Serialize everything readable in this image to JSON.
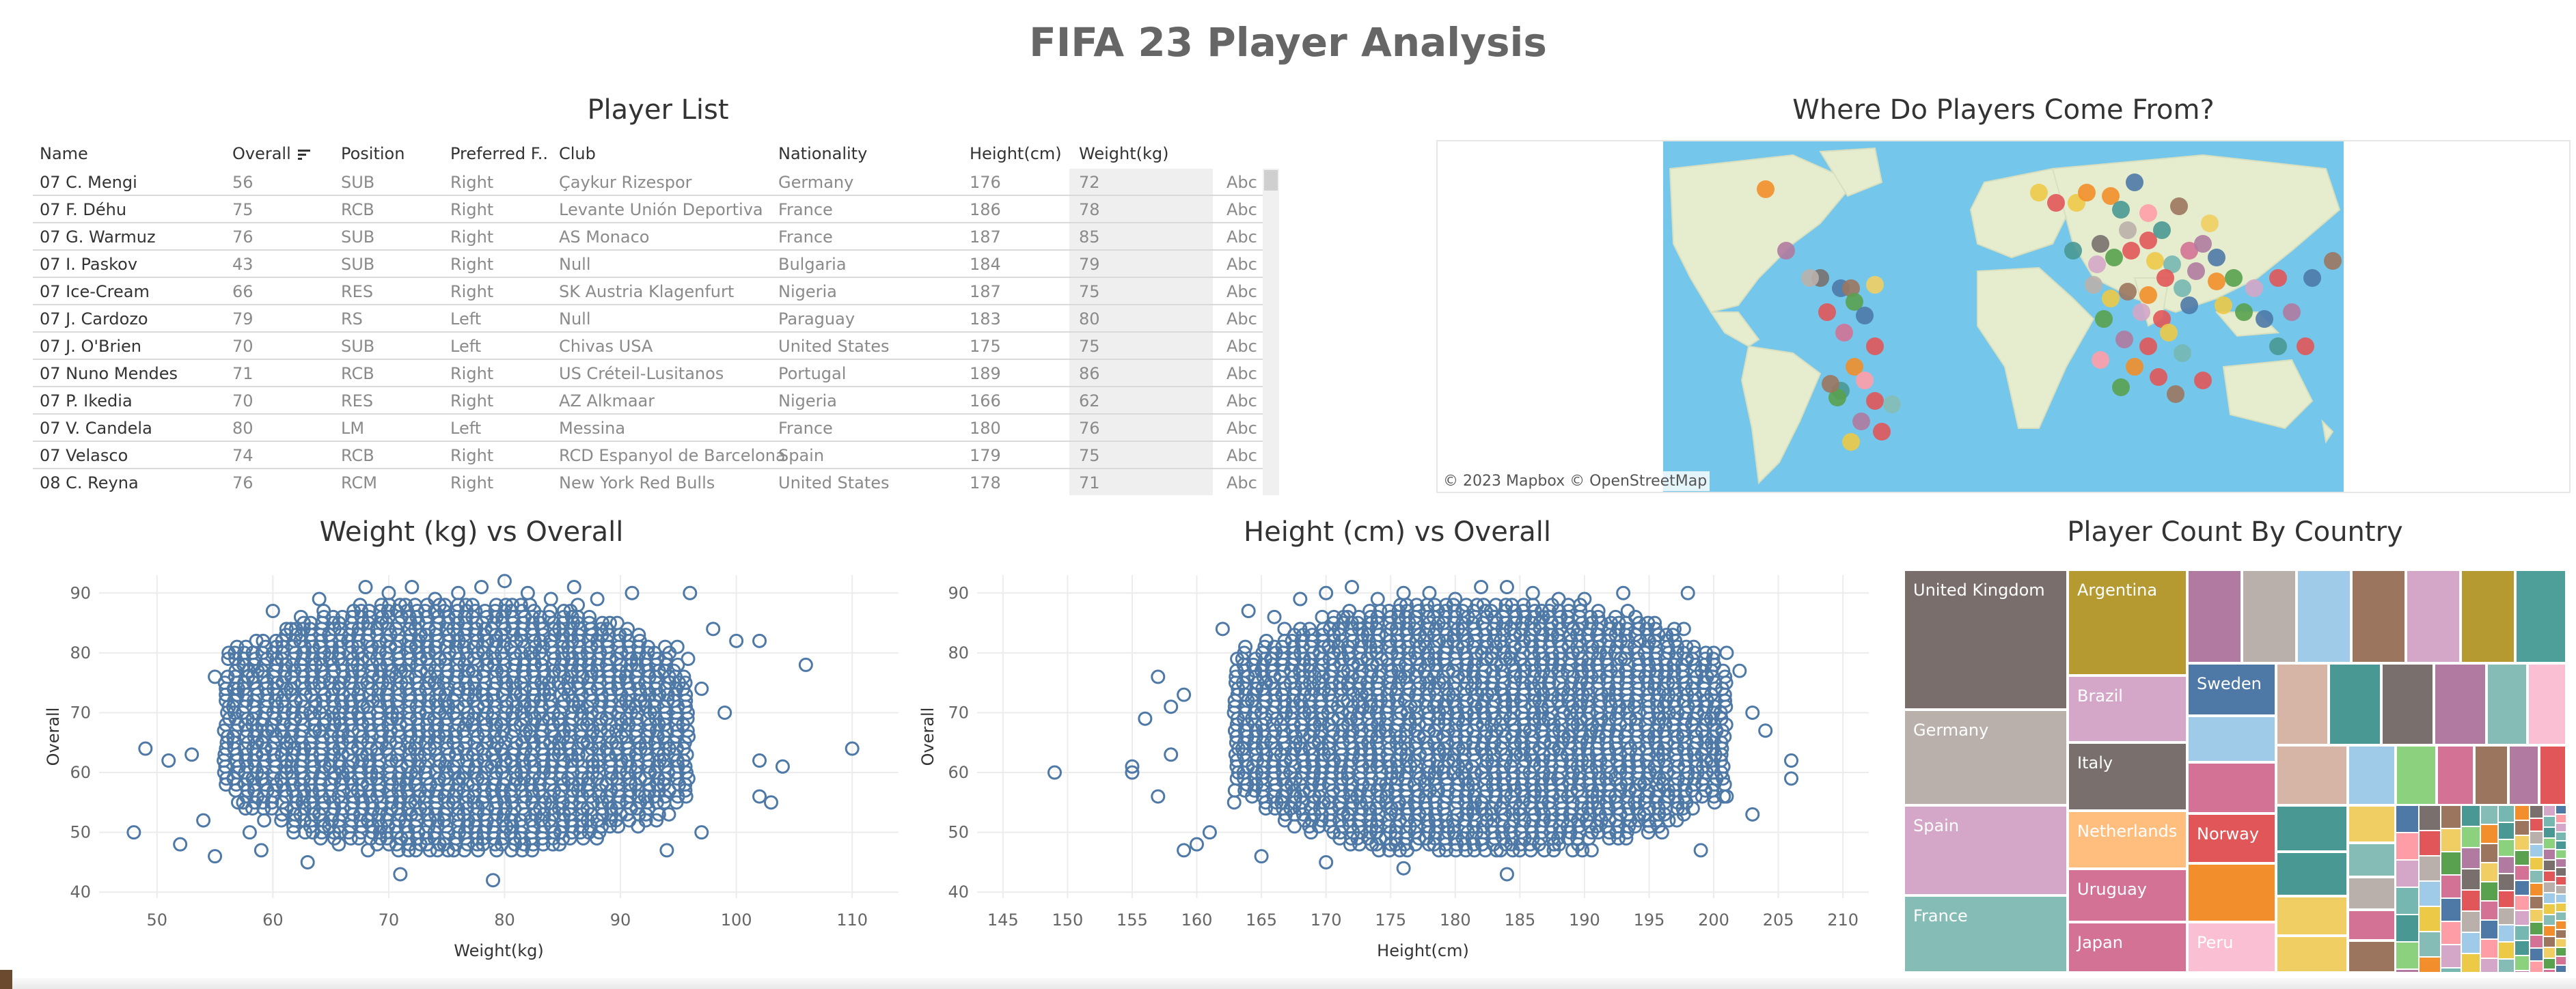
{
  "dashboard_title": "FIFA 23 Player Analysis",
  "player_list": {
    "title": "Player List",
    "columns": [
      "Name",
      "Overall",
      "Position",
      "Preferred F..",
      "Club",
      "Nationality",
      "Height(cm)",
      "Weight(kg)"
    ],
    "rows": [
      [
        "07 C. Mengi",
        "56",
        "SUB",
        "Right",
        "Çaykur Rizespor",
        "Germany",
        "176",
        "72",
        "Abc"
      ],
      [
        "07 F. Déhu",
        "75",
        "RCB",
        "Right",
        "Levante Unión Deportiva",
        "France",
        "186",
        "78",
        "Abc"
      ],
      [
        "07 G. Warmuz",
        "76",
        "SUB",
        "Right",
        "AS Monaco",
        "France",
        "187",
        "85",
        "Abc"
      ],
      [
        "07 I. Paskov",
        "43",
        "SUB",
        "Right",
        "Null",
        "Bulgaria",
        "184",
        "79",
        "Abc"
      ],
      [
        "07 Ice-Cream",
        "66",
        "RES",
        "Right",
        "SK Austria Klagenfurt",
        "Nigeria",
        "187",
        "75",
        "Abc"
      ],
      [
        "07 J. Cardozo",
        "79",
        "RS",
        "Left",
        "Null",
        "Paraguay",
        "183",
        "80",
        "Abc"
      ],
      [
        "07 J. O'Brien",
        "70",
        "SUB",
        "Left",
        "Chivas USA",
        "United States",
        "175",
        "75",
        "Abc"
      ],
      [
        "07 Nuno Mendes",
        "71",
        "RCB",
        "Right",
        "US Créteil-Lusitanos",
        "Portugal",
        "189",
        "86",
        "Abc"
      ],
      [
        "07 P. Ikedia",
        "70",
        "RES",
        "Right",
        "AZ Alkmaar",
        "Nigeria",
        "166",
        "62",
        "Abc"
      ],
      [
        "07 V. Candela",
        "80",
        "LM",
        "Left",
        "Messina",
        "France",
        "180",
        "76",
        "Abc"
      ],
      [
        "07 Velasco",
        "74",
        "RCB",
        "Right",
        "RCD Espanyol de Barcelona",
        "Spain",
        "179",
        "75",
        "Abc"
      ],
      [
        "08 C. Reyna",
        "76",
        "RCM",
        "Right",
        "New York Red Bulls",
        "United States",
        "178",
        "71",
        "Abc"
      ]
    ]
  },
  "map": {
    "title": "Where Do Players Come From?",
    "attribution": "© 2023 Mapbox  © OpenStreetMap",
    "ocean_color": "#74c7ea",
    "land_color": "#e6edce"
  },
  "chart_data": [
    {
      "type": "scatter",
      "title": "Weight (kg) vs Overall",
      "xlabel": "Weight(kg)",
      "ylabel": "Overall",
      "xlim": [
        45,
        114
      ],
      "ylim": [
        39,
        93
      ],
      "xticks": [
        50,
        60,
        70,
        80,
        90,
        100,
        110
      ],
      "yticks": [
        40,
        50,
        60,
        70,
        80,
        90
      ],
      "dense_region": {
        "x": [
          56,
          96
        ],
        "y": [
          47,
          88
        ]
      },
      "points": [
        [
          48,
          50
        ],
        [
          49,
          64
        ],
        [
          51,
          62
        ],
        [
          52,
          48
        ],
        [
          53,
          63
        ],
        [
          54,
          52
        ],
        [
          55,
          46
        ],
        [
          55,
          76
        ],
        [
          57,
          74
        ],
        [
          60,
          87
        ],
        [
          62,
          84
        ],
        [
          64,
          89
        ],
        [
          66,
          86
        ],
        [
          68,
          91
        ],
        [
          70,
          90
        ],
        [
          72,
          91
        ],
        [
          74,
          89
        ],
        [
          76,
          90
        ],
        [
          78,
          91
        ],
        [
          80,
          92
        ],
        [
          82,
          90
        ],
        [
          84,
          89
        ],
        [
          86,
          91
        ],
        [
          88,
          89
        ],
        [
          91,
          90
        ],
        [
          96,
          90
        ],
        [
          98,
          84
        ],
        [
          100,
          82
        ],
        [
          102,
          82
        ],
        [
          106,
          78
        ],
        [
          110,
          64
        ],
        [
          104,
          61
        ],
        [
          102,
          62
        ],
        [
          103,
          55
        ],
        [
          102,
          56
        ],
        [
          97,
          50
        ],
        [
          94,
          47
        ],
        [
          71,
          43
        ],
        [
          79,
          42
        ],
        [
          63,
          45
        ],
        [
          59,
          47
        ],
        [
          58,
          50
        ],
        [
          57,
          55
        ],
        [
          97,
          74
        ],
        [
          99,
          70
        ]
      ],
      "grid": true,
      "color": "#4e79a7"
    },
    {
      "type": "scatter",
      "title": "Height (cm) vs Overall",
      "xlabel": "Height(cm)",
      "ylabel": "Overall",
      "xlim": [
        143,
        212
      ],
      "ylim": [
        39,
        93
      ],
      "xticks": [
        145,
        150,
        155,
        160,
        165,
        170,
        175,
        180,
        185,
        190,
        195,
        200,
        205,
        210
      ],
      "yticks": [
        40,
        50,
        60,
        70,
        80,
        90
      ],
      "dense_region": {
        "x": [
          163,
          201
        ],
        "y": [
          47,
          88
        ]
      },
      "points": [
        [
          149,
          60
        ],
        [
          155,
          60
        ],
        [
          155,
          61
        ],
        [
          156,
          69
        ],
        [
          157,
          56
        ],
        [
          157,
          76
        ],
        [
          158,
          71
        ],
        [
          158,
          63
        ],
        [
          159,
          47
        ],
        [
          159,
          73
        ],
        [
          160,
          48
        ],
        [
          162,
          84
        ],
        [
          164,
          87
        ],
        [
          166,
          86
        ],
        [
          168,
          89
        ],
        [
          170,
          90
        ],
        [
          172,
          91
        ],
        [
          174,
          89
        ],
        [
          176,
          90
        ],
        [
          178,
          90
        ],
        [
          180,
          89
        ],
        [
          182,
          91
        ],
        [
          184,
          91
        ],
        [
          186,
          90
        ],
        [
          188,
          89
        ],
        [
          190,
          89
        ],
        [
          193,
          90
        ],
        [
          198,
          90
        ],
        [
          200,
          80
        ],
        [
          201,
          80
        ],
        [
          202,
          77
        ],
        [
          203,
          70
        ],
        [
          204,
          67
        ],
        [
          206,
          62
        ],
        [
          206,
          59
        ],
        [
          203,
          53
        ],
        [
          201,
          56
        ],
        [
          199,
          47
        ],
        [
          196,
          50
        ],
        [
          184,
          43
        ],
        [
          176,
          44
        ],
        [
          170,
          45
        ],
        [
          165,
          46
        ],
        [
          161,
          50
        ]
      ],
      "grid": true,
      "color": "#4e79a7"
    },
    {
      "type": "treemap",
      "title": "Player Count By Country",
      "labels": [
        "United Kingdom",
        "Argentina",
        "Germany",
        "Brazil",
        "Spain",
        "Italy",
        "Sweden",
        "France",
        "Netherlands",
        "Norway",
        "Uruguay",
        "Japan",
        "Peru"
      ],
      "colors": {
        "United Kingdom": "#7a6e6c",
        "Argentina": "#b59a32",
        "Germany": "#bab0ab",
        "Brazil": "#d4a6c8",
        "Spain": "#d4a6c8",
        "Italy": "#79706e",
        "Sweden": "#4e79a7",
        "France": "#86bcb6",
        "Netherlands": "#ffbe7d",
        "Norway": "#e15759",
        "Uruguay": "#d37295",
        "Japan": "#d37295",
        "Peru": "#fabfd2"
      }
    }
  ]
}
